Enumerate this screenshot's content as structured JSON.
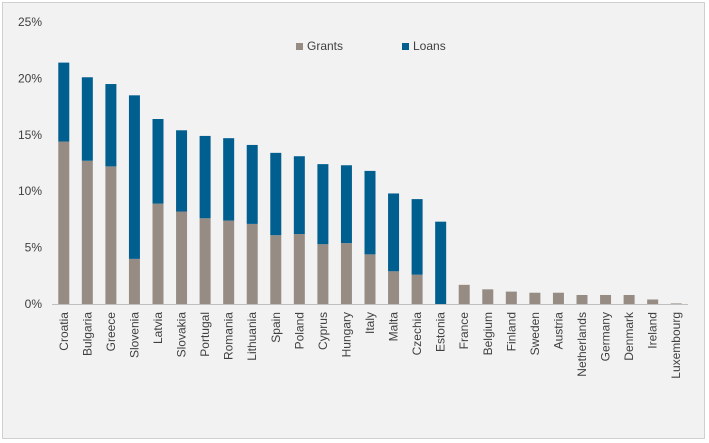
{
  "chart_data": {
    "type": "bar",
    "stacked": true,
    "categories": [
      "Croatia",
      "Bulgaria",
      "Greece",
      "Slovenia",
      "Latvia",
      "Slovakia",
      "Portugal",
      "Romania",
      "Lithuania",
      "Spain",
      "Poland",
      "Cyprus",
      "Hungary",
      "Italy",
      "Malta",
      "Czechia",
      "Estonia",
      "France",
      "Belgium",
      "Finland",
      "Sweden",
      "Austria",
      "Netherlands",
      "Germany",
      "Denmark",
      "Ireland",
      "Luxembourg"
    ],
    "series": [
      {
        "name": "Grants",
        "color": "#968c83",
        "values": [
          14.4,
          12.7,
          12.2,
          4.0,
          8.9,
          8.2,
          7.6,
          7.4,
          7.1,
          6.1,
          6.2,
          5.3,
          5.4,
          4.4,
          2.9,
          2.6,
          0,
          1.7,
          1.3,
          1.1,
          1.0,
          1.0,
          0.8,
          0.8,
          0.8,
          0.4,
          0.05
        ]
      },
      {
        "name": "Loans",
        "color": "#005f8f",
        "values": [
          7.0,
          7.4,
          7.3,
          14.5,
          7.5,
          7.2,
          7.3,
          7.3,
          7.0,
          7.3,
          6.9,
          7.1,
          6.9,
          7.4,
          6.9,
          6.7,
          7.3,
          0,
          0,
          0,
          0,
          0,
          0,
          0,
          0,
          0,
          0
        ]
      }
    ],
    "y_ticks": [
      "0%",
      "5%",
      "10%",
      "15%",
      "20%",
      "25%"
    ],
    "ylim": [
      0,
      25
    ],
    "grid": false,
    "legend_position": "top-center"
  }
}
